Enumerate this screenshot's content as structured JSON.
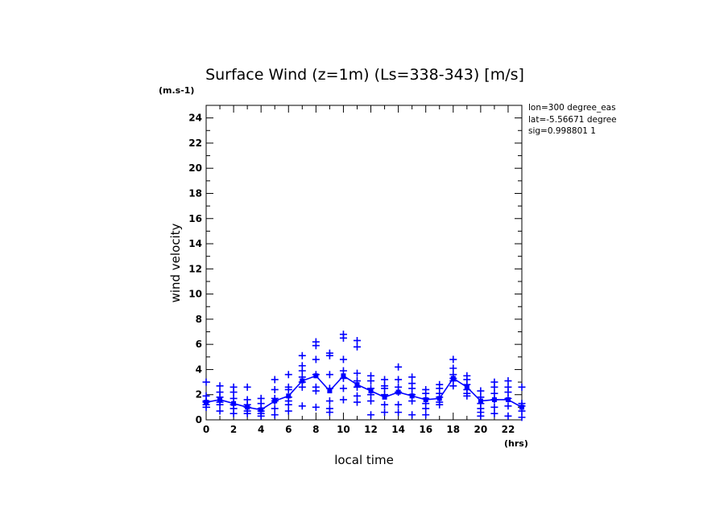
{
  "chart_data": {
    "type": "scatter",
    "title": "Surface Wind (z=1m) (Ls=338-343) [m/s]",
    "y_unit_label": "(m.s-1)",
    "x_unit_label": "(hrs)",
    "xlabel": "local time",
    "ylabel": "wind velocity",
    "xlim": [
      0,
      23
    ],
    "ylim": [
      0,
      25
    ],
    "x_ticks": [
      "0",
      "2",
      "4",
      "6",
      "8",
      "10",
      "12",
      "14",
      "16",
      "18",
      "20",
      "22"
    ],
    "y_ticks": [
      "0",
      "2",
      "4",
      "6",
      "8",
      "10",
      "12",
      "14",
      "16",
      "18",
      "20",
      "22",
      "24"
    ],
    "info_lines": [
      "lon=300 degree_eas",
      "lat=-5.56671 degree",
      "sig=0.998801 1"
    ],
    "colors": {
      "data": "#0000ff",
      "axis": "#000000"
    },
    "grid": false,
    "series": [
      {
        "marker": "plus",
        "x": [
          0,
          0,
          0,
          0,
          0,
          0,
          1,
          1,
          1,
          1,
          1,
          1,
          2,
          2,
          2,
          2,
          2,
          2,
          3,
          3,
          3,
          3,
          3,
          3,
          4,
          4,
          4,
          4,
          4,
          4,
          5,
          5,
          5,
          5,
          5,
          5,
          6,
          6,
          6,
          6,
          6,
          6,
          6,
          7,
          7,
          7,
          7,
          7,
          7,
          7,
          8,
          8,
          8,
          8,
          8,
          8,
          8,
          9,
          9,
          9,
          9,
          9,
          9,
          9,
          10,
          10,
          10,
          10,
          10,
          10,
          10,
          11,
          11,
          11,
          11,
          11,
          11,
          11,
          12,
          12,
          12,
          12,
          12,
          12,
          13,
          13,
          13,
          13,
          13,
          13,
          14,
          14,
          14,
          14,
          14,
          14,
          15,
          15,
          15,
          15,
          15,
          15,
          16,
          16,
          16,
          16,
          16,
          16,
          17,
          17,
          17,
          17,
          17,
          17,
          18,
          18,
          18,
          18,
          18,
          18,
          19,
          19,
          19,
          19,
          19,
          19,
          20,
          20,
          20,
          20,
          20,
          20,
          21,
          21,
          21,
          21,
          21,
          21,
          22,
          22,
          22,
          22,
          22,
          22,
          23,
          23,
          23,
          23,
          23
        ],
        "y": [
          3.0,
          1.9,
          1.5,
          1.2,
          1.0,
          1.4,
          2.7,
          2.2,
          1.8,
          1.4,
          1.2,
          0.7,
          2.6,
          2.2,
          1.7,
          1.2,
          0.9,
          0.5,
          2.6,
          1.6,
          1.2,
          1.0,
          0.7,
          0.5,
          1.7,
          1.3,
          0.9,
          0.7,
          0.5,
          0.3,
          3.2,
          2.4,
          1.7,
          1.5,
          0.9,
          0.4,
          3.6,
          2.6,
          2.4,
          1.8,
          1.5,
          1.2,
          0.7,
          5.1,
          4.3,
          3.9,
          3.4,
          3.0,
          2.6,
          1.1,
          6.2,
          5.9,
          4.8,
          3.6,
          2.6,
          2.3,
          1.0,
          5.3,
          5.1,
          3.6,
          2.5,
          1.5,
          0.9,
          0.6,
          6.8,
          6.5,
          4.8,
          3.9,
          3.3,
          2.5,
          1.6,
          6.3,
          5.8,
          3.7,
          3.1,
          2.6,
          1.9,
          1.4,
          3.5,
          3.1,
          2.5,
          2.0,
          1.5,
          0.4,
          3.2,
          2.7,
          2.5,
          2.0,
          1.2,
          0.6,
          4.2,
          3.2,
          2.6,
          2.2,
          1.2,
          0.6,
          3.4,
          2.9,
          2.5,
          2.0,
          1.5,
          0.4,
          2.4,
          2.1,
          1.7,
          1.3,
          0.9,
          0.4,
          2.8,
          2.5,
          2.1,
          1.8,
          1.4,
          1.2,
          4.8,
          4.1,
          3.6,
          3.3,
          3.1,
          2.7,
          3.5,
          3.2,
          2.8,
          2.4,
          2.1,
          1.9,
          2.3,
          1.8,
          1.3,
          0.9,
          0.6,
          0.3,
          3.0,
          2.6,
          2.1,
          1.6,
          1.0,
          0.5,
          3.1,
          2.6,
          2.2,
          1.7,
          1.1,
          0.3,
          2.6,
          1.3,
          1.1,
          0.7,
          0.2
        ]
      },
      {
        "marker": "line",
        "x": [
          0,
          1,
          2,
          3,
          4,
          5,
          6,
          7,
          8,
          9,
          10,
          11,
          12,
          13,
          14,
          15,
          16,
          17,
          18,
          19,
          20,
          21,
          22,
          23
        ],
        "y": [
          1.4,
          1.6,
          1.3,
          1.0,
          0.8,
          1.5,
          1.9,
          3.1,
          3.5,
          2.3,
          3.5,
          2.8,
          2.3,
          1.8,
          2.2,
          1.9,
          1.6,
          1.7,
          3.3,
          2.6,
          1.5,
          1.6,
          1.6,
          1.0
        ]
      }
    ]
  }
}
